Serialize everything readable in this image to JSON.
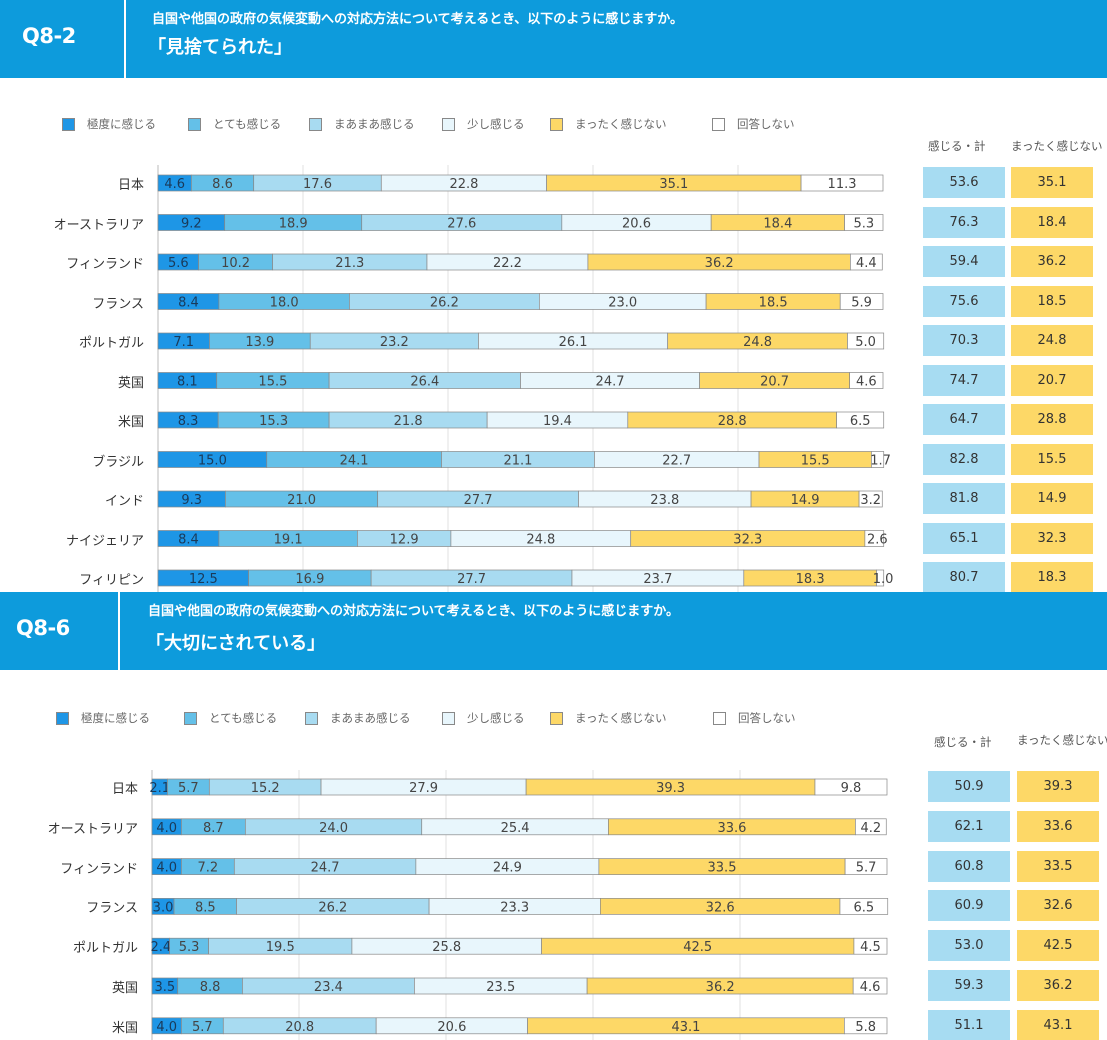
{
  "legend_labels": [
    "極度に感じる",
    "とても感じる",
    "まあまあ感じる",
    "少し感じる",
    "まったく感じない",
    "回答しない"
  ],
  "colors": [
    "#1e96e6",
    "#64c0e8",
    "#a8dbf1",
    "#e8f6fc",
    "#fdd867",
    "#ffffff"
  ],
  "col_headers": [
    "感じる・計",
    "まったく感じない"
  ],
  "chart_data": [
    {
      "type": "bar",
      "stacked": true,
      "orientation": "horizontal",
      "qlabel": "Q8-2",
      "question": "自国や他国の政府の気候変動への対応方法について考えるとき、以下のように感じますか。",
      "title": "「見捨てられた」",
      "xlim": [
        0,
        100
      ],
      "categories": [
        "日本",
        "オーストラリア",
        "フィンランド",
        "フランス",
        "ポルトガル",
        "英国",
        "米国",
        "ブラジル",
        "インド",
        "ナイジェリア",
        "フィリピン"
      ],
      "series": [
        {
          "name": "極度に感じる",
          "values": [
            4.6,
            9.2,
            5.6,
            8.4,
            7.1,
            8.1,
            8.3,
            15.0,
            9.3,
            8.4,
            12.5
          ]
        },
        {
          "name": "とても感じる",
          "values": [
            8.6,
            18.9,
            10.2,
            18.0,
            13.9,
            15.5,
            15.3,
            24.1,
            21.0,
            19.1,
            16.9
          ]
        },
        {
          "name": "まあまあ感じる",
          "values": [
            17.6,
            27.6,
            21.3,
            26.2,
            23.2,
            26.4,
            21.8,
            21.1,
            27.7,
            12.9,
            27.7
          ]
        },
        {
          "name": "少し感じる",
          "values": [
            22.8,
            20.6,
            22.2,
            23.0,
            26.1,
            24.7,
            19.4,
            22.7,
            23.8,
            24.8,
            23.7
          ]
        },
        {
          "name": "まったく感じない",
          "values": [
            35.1,
            18.4,
            36.2,
            18.5,
            24.8,
            20.7,
            28.8,
            15.5,
            14.9,
            32.3,
            18.3
          ]
        },
        {
          "name": "回答しない",
          "values": [
            11.3,
            5.3,
            4.4,
            5.9,
            5.0,
            4.6,
            6.5,
            1.7,
            3.2,
            2.6,
            1.0
          ]
        }
      ],
      "totals_feel": [
        53.6,
        76.3,
        59.4,
        75.6,
        70.3,
        74.7,
        64.7,
        82.8,
        81.8,
        65.1,
        80.7
      ],
      "totals_none": [
        35.1,
        18.4,
        36.2,
        18.5,
        24.8,
        20.7,
        28.8,
        15.5,
        14.9,
        32.3,
        18.3
      ]
    },
    {
      "type": "bar",
      "stacked": true,
      "orientation": "horizontal",
      "qlabel": "Q8-6",
      "question": "自国や他国の政府の気候変動への対応方法について考えるとき、以下のように感じますか。",
      "title": "「大切にされている」",
      "xlim": [
        0,
        100
      ],
      "categories": [
        "日本",
        "オーストラリア",
        "フィンランド",
        "フランス",
        "ポルトガル",
        "英国",
        "米国"
      ],
      "series": [
        {
          "name": "極度に感じる",
          "values": [
            2.1,
            4.0,
            4.0,
            3.0,
            2.4,
            3.5,
            4.0
          ]
        },
        {
          "name": "とても感じる",
          "values": [
            5.7,
            8.7,
            7.2,
            8.5,
            5.3,
            8.8,
            5.7
          ]
        },
        {
          "name": "まあまあ感じる",
          "values": [
            15.2,
            24.0,
            24.7,
            26.2,
            19.5,
            23.4,
            20.8
          ]
        },
        {
          "name": "少し感じる",
          "values": [
            27.9,
            25.4,
            24.9,
            23.3,
            25.8,
            23.5,
            20.6
          ]
        },
        {
          "name": "まったく感じない",
          "values": [
            39.3,
            33.6,
            33.5,
            32.6,
            42.5,
            36.2,
            43.1
          ]
        },
        {
          "name": "回答しない",
          "values": [
            9.8,
            4.2,
            5.7,
            6.5,
            4.5,
            4.6,
            5.8
          ]
        }
      ],
      "totals_feel": [
        50.9,
        62.1,
        60.8,
        60.9,
        53.0,
        59.3,
        51.1
      ],
      "totals_none": [
        39.3,
        33.6,
        33.5,
        32.6,
        42.5,
        36.2,
        43.1
      ]
    }
  ]
}
